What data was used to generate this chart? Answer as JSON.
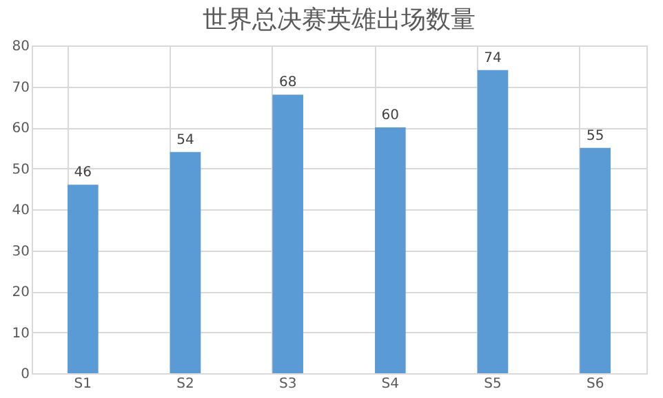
{
  "chart_data": {
    "type": "bar",
    "title": "世界总决赛英雄出场数量",
    "categories": [
      "S1",
      "S2",
      "S3",
      "S4",
      "S5",
      "S6"
    ],
    "values": [
      46,
      54,
      68,
      60,
      74,
      55
    ],
    "color": "#5b9bd5",
    "ylim": [
      0,
      80
    ],
    "yticks": [
      0,
      10,
      20,
      30,
      40,
      50,
      60,
      70,
      80
    ],
    "grid": true,
    "data_labels": true
  }
}
